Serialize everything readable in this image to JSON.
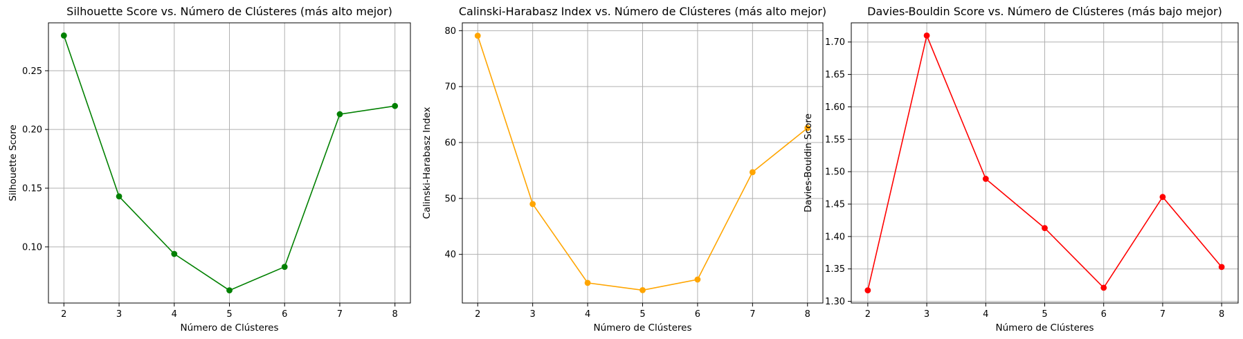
{
  "chart_data": [
    {
      "type": "line",
      "title": "Silhouette Score vs. Número de Clústeres (más alto mejor)",
      "xlabel": "Número de Clústeres",
      "ylabel": "Silhouette Score",
      "x": [
        2,
        3,
        4,
        5,
        6,
        7,
        8
      ],
      "series": [
        {
          "values": [
            0.28,
            0.143,
            0.094,
            0.063,
            0.083,
            0.213,
            0.22
          ]
        }
      ],
      "xticks": [
        "2",
        "3",
        "4",
        "5",
        "6",
        "7",
        "8"
      ],
      "yticks": [
        {
          "v": 0.1,
          "label": "0.10"
        },
        {
          "v": 0.15,
          "label": "0.15"
        },
        {
          "v": 0.2,
          "label": "0.20"
        },
        {
          "v": 0.25,
          "label": "0.25"
        }
      ],
      "xlim": [
        1.72,
        8.28
      ],
      "ylim": [
        0.0522,
        0.2908
      ],
      "color": "#008000",
      "grid": true,
      "marker": "circle"
    },
    {
      "type": "line",
      "title": "Calinski-Harabasz Index vs. Número de Clústeres (más alto mejor)",
      "xlabel": "Número de Clústeres",
      "ylabel": "Calinski-Harabasz Index",
      "x": [
        2,
        3,
        4,
        5,
        6,
        7,
        8
      ],
      "series": [
        {
          "values": [
            79.1,
            49.0,
            34.9,
            33.6,
            35.5,
            54.7,
            62.6
          ]
        }
      ],
      "xticks": [
        "2",
        "3",
        "4",
        "5",
        "6",
        "7",
        "8"
      ],
      "yticks": [
        {
          "v": 40,
          "label": "40"
        },
        {
          "v": 50,
          "label": "50"
        },
        {
          "v": 60,
          "label": "60"
        },
        {
          "v": 70,
          "label": "70"
        },
        {
          "v": 80,
          "label": "80"
        }
      ],
      "xlim": [
        1.72,
        8.28
      ],
      "ylim": [
        31.3,
        81.4
      ],
      "color": "#ffa500",
      "grid": true,
      "marker": "circle"
    },
    {
      "type": "line",
      "title": "Davies-Bouldin Score vs. Número de Clústeres (más bajo mejor)",
      "xlabel": "Número de Clústeres",
      "ylabel": "Davies-Bouldin Score",
      "x": [
        2,
        3,
        4,
        5,
        6,
        7,
        8
      ],
      "series": [
        {
          "values": [
            1.317,
            1.71,
            1.489,
            1.413,
            1.321,
            1.461,
            1.353
          ]
        }
      ],
      "xticks": [
        "2",
        "3",
        "4",
        "5",
        "6",
        "7",
        "8"
      ],
      "yticks": [
        {
          "v": 1.3,
          "label": "1.30"
        },
        {
          "v": 1.35,
          "label": "1.35"
        },
        {
          "v": 1.4,
          "label": "1.40"
        },
        {
          "v": 1.45,
          "label": "1.45"
        },
        {
          "v": 1.5,
          "label": "1.50"
        },
        {
          "v": 1.55,
          "label": "1.55"
        },
        {
          "v": 1.6,
          "label": "1.60"
        },
        {
          "v": 1.65,
          "label": "1.65"
        },
        {
          "v": 1.7,
          "label": "1.70"
        }
      ],
      "xlim": [
        1.72,
        8.28
      ],
      "ylim": [
        1.2974,
        1.7296
      ],
      "color": "#ff0000",
      "grid": true,
      "marker": "circle"
    }
  ]
}
